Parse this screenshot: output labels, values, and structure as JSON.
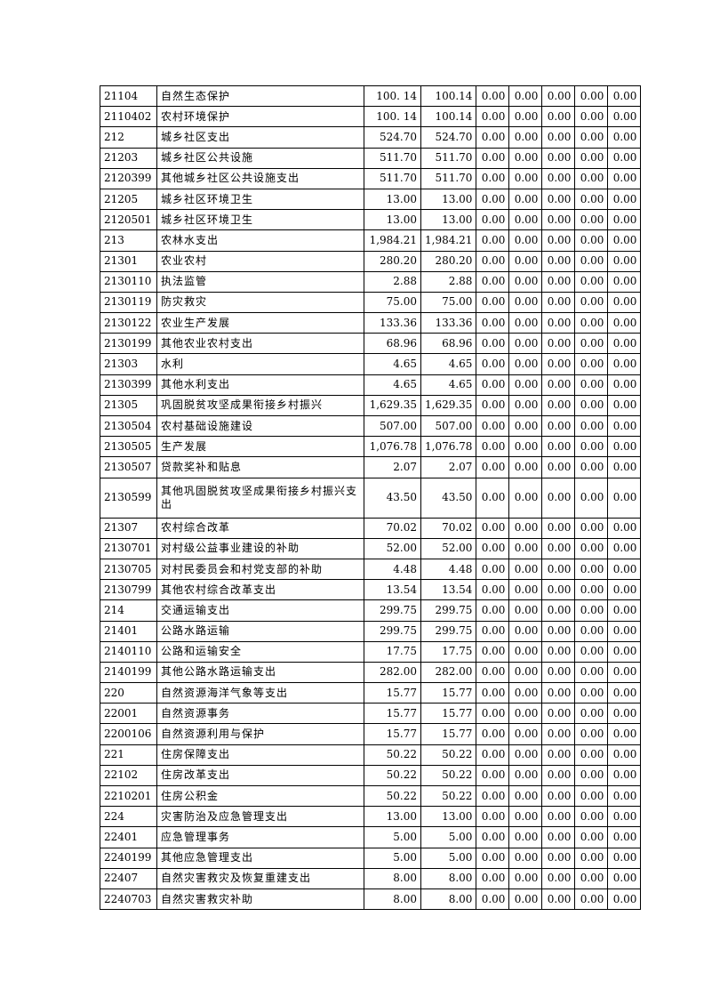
{
  "table": {
    "rows": [
      [
        "21104",
        "自然生态保护",
        "100. 14",
        "100.14",
        "0.00",
        "0.00",
        "0.00",
        "0.00",
        "0.00"
      ],
      [
        "2110402",
        "农村环境保护",
        "100. 14",
        "100.14",
        "0.00",
        "0.00",
        "0.00",
        "0.00",
        "0.00"
      ],
      [
        "212",
        "城乡社区支出",
        "524.70",
        "524.70",
        "0.00",
        "0.00",
        "0.00",
        "0.00",
        "0.00"
      ],
      [
        "21203",
        "城乡社区公共设施",
        "511.70",
        "511.70",
        "0.00",
        "0.00",
        "0.00",
        "0.00",
        "0.00"
      ],
      [
        "2120399",
        "其他城乡社区公共设施支出",
        "511.70",
        "511.70",
        "0.00",
        "0.00",
        "0.00",
        "0.00",
        "0.00"
      ],
      [
        "21205",
        "城乡社区环境卫生",
        "13.00",
        "13.00",
        "0.00",
        "0.00",
        "0.00",
        "0.00",
        "0.00"
      ],
      [
        "2120501",
        "城乡社区环境卫生",
        "13.00",
        "13.00",
        "0.00",
        "0.00",
        "0.00",
        "0.00",
        "0.00"
      ],
      [
        "213",
        "农林水支出",
        "1,984.21",
        "1,984.21",
        "0.00",
        "0.00",
        "0.00",
        "0.00",
        "0.00"
      ],
      [
        "21301",
        "农业农村",
        "280.20",
        "280.20",
        "0.00",
        "0.00",
        "0.00",
        "0.00",
        "0.00"
      ],
      [
        "2130110",
        "执法监管",
        "2.88",
        "2.88",
        "0.00",
        "0.00",
        "0.00",
        "0.00",
        "0.00"
      ],
      [
        "2130119",
        "防灾救灾",
        "75.00",
        "75.00",
        "0.00",
        "0.00",
        "0.00",
        "0.00",
        "0.00"
      ],
      [
        "2130122",
        "农业生产发展",
        "133.36",
        "133.36",
        "0.00",
        "0.00",
        "0.00",
        "0.00",
        "0.00"
      ],
      [
        "2130199",
        "其他农业农村支出",
        "68.96",
        "68.96",
        "0.00",
        "0.00",
        "0.00",
        "0.00",
        "0.00"
      ],
      [
        "21303",
        "水利",
        "4.65",
        "4.65",
        "0.00",
        "0.00",
        "0.00",
        "0.00",
        "0.00"
      ],
      [
        "2130399",
        "其他水利支出",
        "4.65",
        "4.65",
        "0.00",
        "0.00",
        "0.00",
        "0.00",
        "0.00"
      ],
      [
        "21305",
        "巩固脱贫攻坚成果衔接乡村振兴",
        "1,629.35",
        "1,629.35",
        "0.00",
        "0.00",
        "0.00",
        "0.00",
        "0.00"
      ],
      [
        "2130504",
        "农村基础设施建设",
        "507.00",
        "507.00",
        "0.00",
        "0.00",
        "0.00",
        "0.00",
        "0.00"
      ],
      [
        "2130505",
        "生产发展",
        "1,076.78",
        "1,076.78",
        "0.00",
        "0.00",
        "0.00",
        "0.00",
        "0.00"
      ],
      [
        "2130507",
        "贷款奖补和贴息",
        "2.07",
        "2.07",
        "0.00",
        "0.00",
        "0.00",
        "0.00",
        "0.00"
      ],
      [
        "2130599",
        "其他巩固脱贫攻坚成果衔接乡村振兴支出",
        "43.50",
        "43.50",
        "0.00",
        "0.00",
        "0.00",
        "0.00",
        "0.00"
      ],
      [
        "21307",
        "农村综合改革",
        "70.02",
        "70.02",
        "0.00",
        "0.00",
        "0.00",
        "0.00",
        "0.00"
      ],
      [
        "2130701",
        "对村级公益事业建设的补助",
        "52.00",
        "52.00",
        "0.00",
        "0.00",
        "0.00",
        "0.00",
        "0.00"
      ],
      [
        "2130705",
        "对村民委员会和村党支部的补助",
        "4.48",
        "4.48",
        "0.00",
        "0.00",
        "0.00",
        "0.00",
        "0.00"
      ],
      [
        "2130799",
        "其他农村综合改革支出",
        "13.54",
        "13.54",
        "0.00",
        "0.00",
        "0.00",
        "0.00",
        "0.00"
      ],
      [
        "214",
        "交通运输支出",
        "299.75",
        "299.75",
        "0.00",
        "0.00",
        "0.00",
        "0.00",
        "0.00"
      ],
      [
        "21401",
        "公路水路运输",
        "299.75",
        "299.75",
        "0.00",
        "0.00",
        "0.00",
        "0.00",
        "0.00"
      ],
      [
        "2140110",
        "公路和运输安全",
        "17.75",
        "17.75",
        "0.00",
        "0.00",
        "0.00",
        "0.00",
        "0.00"
      ],
      [
        "2140199",
        "其他公路水路运输支出",
        "282.00",
        "282.00",
        "0.00",
        "0.00",
        "0.00",
        "0.00",
        "0.00"
      ],
      [
        "220",
        "自然资源海洋气象等支出",
        "15.77",
        "15.77",
        "0.00",
        "0.00",
        "0.00",
        "0.00",
        "0.00"
      ],
      [
        "22001",
        "自然资源事务",
        "15.77",
        "15.77",
        "0.00",
        "0.00",
        "0.00",
        "0.00",
        "0.00"
      ],
      [
        "2200106",
        "自然资源利用与保护",
        "15.77",
        "15.77",
        "0.00",
        "0.00",
        "0.00",
        "0.00",
        "0.00"
      ],
      [
        "221",
        "住房保障支出",
        "50.22",
        "50.22",
        "0.00",
        "0.00",
        "0.00",
        "0.00",
        "0.00"
      ],
      [
        "22102",
        "住房改革支出",
        "50.22",
        "50.22",
        "0.00",
        "0.00",
        "0.00",
        "0.00",
        "0.00"
      ],
      [
        "2210201",
        "住房公积金",
        "50.22",
        "50.22",
        "0.00",
        "0.00",
        "0.00",
        "0.00",
        "0.00"
      ],
      [
        "224",
        "灾害防治及应急管理支出",
        "13.00",
        "13.00",
        "0.00",
        "0.00",
        "0.00",
        "0.00",
        "0.00"
      ],
      [
        "22401",
        "应急管理事务",
        "5.00",
        "5.00",
        "0.00",
        "0.00",
        "0.00",
        "0.00",
        "0.00"
      ],
      [
        "2240199",
        "其他应急管理支出",
        "5.00",
        "5.00",
        "0.00",
        "0.00",
        "0.00",
        "0.00",
        "0.00"
      ],
      [
        "22407",
        "自然灾害救灾及恢复重建支出",
        "8.00",
        "8.00",
        "0.00",
        "0.00",
        "0.00",
        "0.00",
        "0.00"
      ],
      [
        "2240703",
        "自然灾害救灾补助",
        "8.00",
        "8.00",
        "0.00",
        "0.00",
        "0.00",
        "0.00",
        "0.00"
      ]
    ]
  }
}
